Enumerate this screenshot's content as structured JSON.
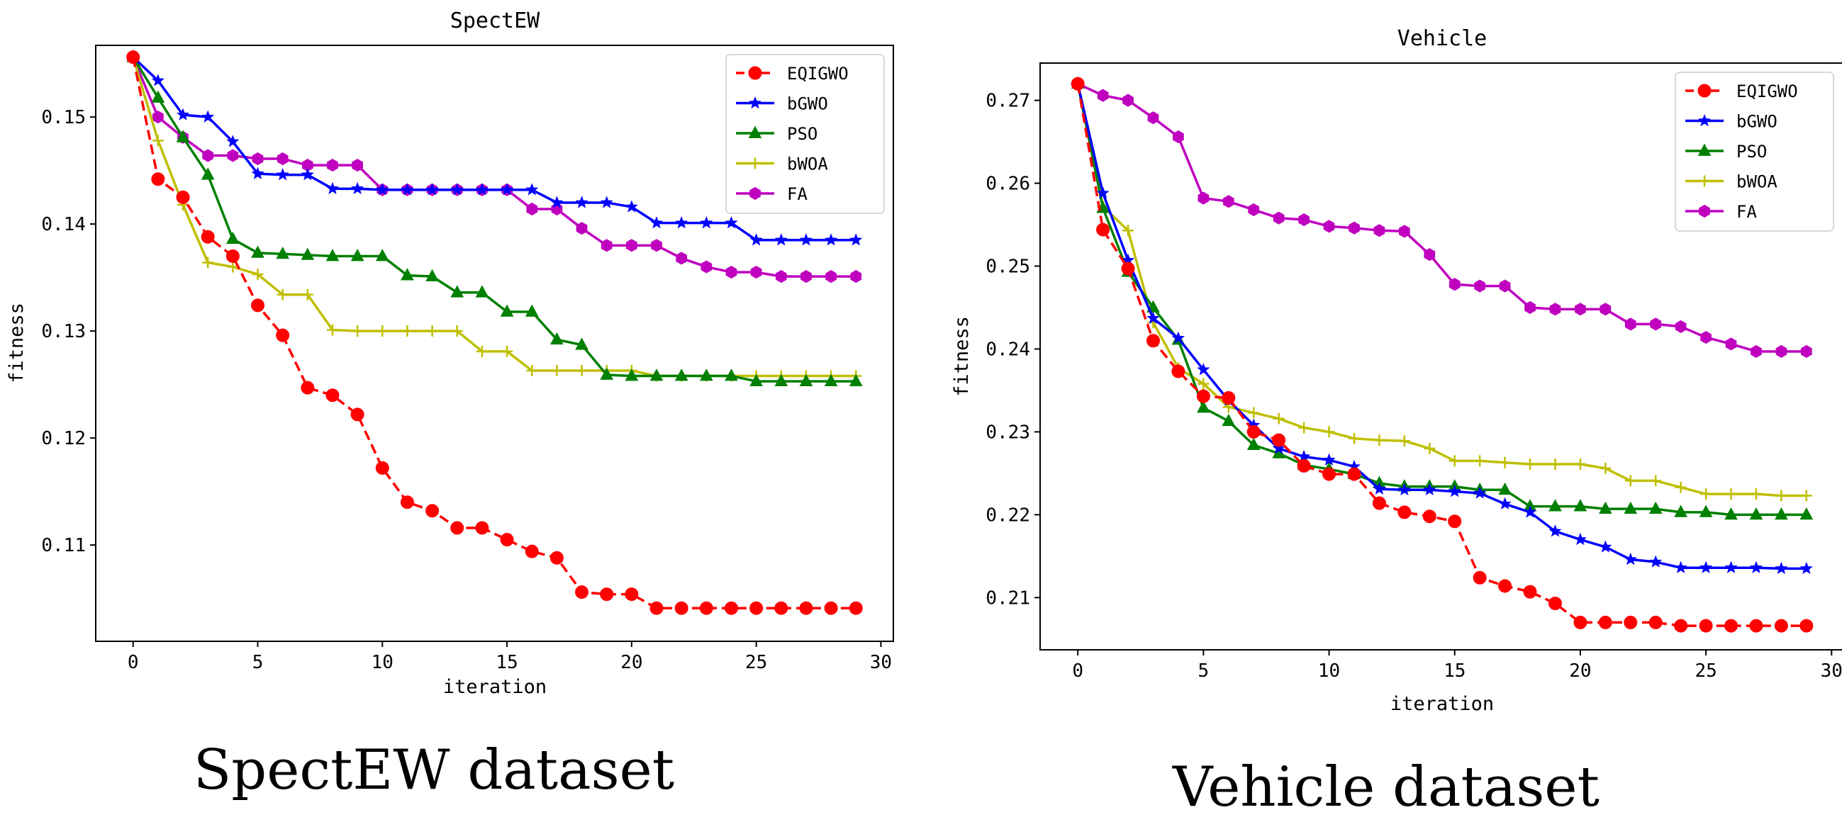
{
  "chart_data": [
    {
      "type": "line",
      "title": "SpectEW",
      "xlabel": "iteration",
      "ylabel": "fitness",
      "xlim": [
        -1.5,
        30.5
      ],
      "ylim": [
        0.101,
        0.1567
      ],
      "xticks": [
        0,
        5,
        10,
        15,
        20,
        25,
        30
      ],
      "xtick_labels": [
        "0",
        "5",
        "10",
        "15",
        "20",
        "25",
        "30"
      ],
      "yticks": [
        0.11,
        0.12,
        0.13,
        0.14,
        0.15
      ],
      "ytick_labels": [
        "0.11",
        "0.12",
        "0.13",
        "0.14",
        "0.15"
      ],
      "legend_position": "top-right",
      "caption": "SpectEW dataset",
      "x": [
        0,
        1,
        2,
        3,
        4,
        5,
        6,
        7,
        8,
        9,
        10,
        11,
        12,
        13,
        14,
        15,
        16,
        17,
        18,
        19,
        20,
        21,
        22,
        23,
        24,
        25,
        26,
        27,
        28,
        29
      ],
      "series": [
        {
          "name": "EQIGWO",
          "color": "#ff0000",
          "marker": "circle",
          "dashed": true,
          "values": [
            0.1556,
            0.1442,
            0.1425,
            0.1388,
            0.137,
            0.1324,
            0.1296,
            0.1247,
            0.124,
            0.1222,
            0.1172,
            0.114,
            0.1132,
            0.1116,
            0.1116,
            0.1105,
            0.1094,
            0.1088,
            0.1056,
            0.1054,
            0.1054,
            0.1041,
            0.1041,
            0.1041,
            0.1041,
            0.1041,
            0.1041,
            0.1041,
            0.1041,
            0.1041
          ]
        },
        {
          "name": "bGWO",
          "color": "#0000ff",
          "marker": "star",
          "dashed": false,
          "values": [
            0.1556,
            0.1534,
            0.1502,
            0.15,
            0.1477,
            0.1447,
            0.1446,
            0.1446,
            0.1433,
            0.1433,
            0.1432,
            0.1432,
            0.1432,
            0.1432,
            0.1432,
            0.1432,
            0.1432,
            0.142,
            0.142,
            0.142,
            0.1416,
            0.1401,
            0.1401,
            0.1401,
            0.1401,
            0.1385,
            0.1385,
            0.1385,
            0.1385,
            0.1385
          ]
        },
        {
          "name": "PSO",
          "color": "#008000",
          "marker": "triangle",
          "dashed": false,
          "values": [
            0.1556,
            0.1518,
            0.1481,
            0.1446,
            0.1386,
            0.1373,
            0.1372,
            0.1371,
            0.137,
            0.137,
            0.137,
            0.1352,
            0.1351,
            0.1336,
            0.1336,
            0.1318,
            0.1318,
            0.1292,
            0.1287,
            0.1259,
            0.1258,
            0.1258,
            0.1258,
            0.1258,
            0.1258,
            0.1253,
            0.1253,
            0.1253,
            0.1253,
            0.1253
          ]
        },
        {
          "name": "bWOA",
          "color": "#bfbf00",
          "marker": "plus",
          "dashed": false,
          "values": [
            0.1556,
            0.1478,
            0.1418,
            0.1364,
            0.136,
            0.1353,
            0.1334,
            0.1334,
            0.1301,
            0.13,
            0.13,
            0.13,
            0.13,
            0.13,
            0.1281,
            0.1281,
            0.1263,
            0.1263,
            0.1263,
            0.1263,
            0.1263,
            0.1258,
            0.1258,
            0.1258,
            0.1258,
            0.1258,
            0.1258,
            0.1258,
            0.1258,
            0.1258
          ]
        },
        {
          "name": "FA",
          "color": "#bf00bf",
          "marker": "hexagon",
          "dashed": false,
          "values": [
            0.1556,
            0.15,
            0.1481,
            0.1464,
            0.1464,
            0.1461,
            0.1461,
            0.1455,
            0.1455,
            0.1455,
            0.1432,
            0.1432,
            0.1432,
            0.1432,
            0.1432,
            0.1432,
            0.1414,
            0.1414,
            0.1396,
            0.138,
            0.138,
            0.138,
            0.1368,
            0.136,
            0.1355,
            0.1355,
            0.1351,
            0.1351,
            0.1351,
            0.1351
          ]
        }
      ]
    },
    {
      "type": "line",
      "title": "Vehicle",
      "xlabel": "iteration",
      "ylabel": "fitness",
      "xlim": [
        -1.5,
        30.5
      ],
      "ylim": [
        0.2037,
        0.2745
      ],
      "xticks": [
        0,
        5,
        10,
        15,
        20,
        25,
        30
      ],
      "xtick_labels": [
        "0",
        "5",
        "10",
        "15",
        "20",
        "25",
        "30"
      ],
      "yticks": [
        0.21,
        0.22,
        0.23,
        0.24,
        0.25,
        0.26,
        0.27
      ],
      "ytick_labels": [
        "0.21",
        "0.22",
        "0.23",
        "0.24",
        "0.25",
        "0.26",
        "0.27"
      ],
      "legend_position": "top-right",
      "caption": "Vehicle dataset",
      "x": [
        0,
        1,
        2,
        3,
        4,
        5,
        6,
        7,
        8,
        9,
        10,
        11,
        12,
        13,
        14,
        15,
        16,
        17,
        18,
        19,
        20,
        21,
        22,
        23,
        24,
        25,
        26,
        27,
        28,
        29
      ],
      "series": [
        {
          "name": "EQIGWO",
          "color": "#ff0000",
          "marker": "circle",
          "dashed": true,
          "values": [
            0.272,
            0.2544,
            0.2497,
            0.241,
            0.2373,
            0.2343,
            0.2341,
            0.23,
            0.229,
            0.2259,
            0.2249,
            0.2249,
            0.2214,
            0.2203,
            0.2198,
            0.2192,
            0.2124,
            0.2114,
            0.2107,
            0.2093,
            0.207,
            0.207,
            0.207,
            0.207,
            0.2066,
            0.2066,
            0.2066,
            0.2066,
            0.2066,
            0.2066
          ]
        },
        {
          "name": "bGWO",
          "color": "#0000ff",
          "marker": "star",
          "dashed": false,
          "values": [
            0.272,
            0.2588,
            0.2507,
            0.2437,
            0.2413,
            0.2375,
            0.2338,
            0.2308,
            0.228,
            0.227,
            0.2266,
            0.2258,
            0.2231,
            0.223,
            0.223,
            0.2228,
            0.2226,
            0.2213,
            0.2203,
            0.218,
            0.217,
            0.2161,
            0.2146,
            0.2143,
            0.2136,
            0.2136,
            0.2136,
            0.2136,
            0.2135,
            0.2135
          ]
        },
        {
          "name": "PSO",
          "color": "#008000",
          "marker": "triangle",
          "dashed": false,
          "values": [
            0.272,
            0.257,
            0.2493,
            0.245,
            0.2411,
            0.2329,
            0.2313,
            0.2284,
            0.2274,
            0.226,
            0.2255,
            0.2249,
            0.2238,
            0.2234,
            0.2234,
            0.2234,
            0.223,
            0.223,
            0.221,
            0.221,
            0.221,
            0.2207,
            0.2207,
            0.2207,
            0.2203,
            0.2203,
            0.22,
            0.22,
            0.22,
            0.22
          ]
        },
        {
          "name": "bWOA",
          "color": "#bfbf00",
          "marker": "plus",
          "dashed": false,
          "values": [
            0.272,
            0.2572,
            0.2543,
            0.2432,
            0.2377,
            0.2358,
            0.233,
            0.2323,
            0.2316,
            0.2305,
            0.23,
            0.2292,
            0.229,
            0.2289,
            0.228,
            0.2265,
            0.2265,
            0.2263,
            0.2261,
            0.2261,
            0.2261,
            0.2256,
            0.2241,
            0.2241,
            0.2233,
            0.2225,
            0.2225,
            0.2225,
            0.2223,
            0.2223
          ]
        },
        {
          "name": "FA",
          "color": "#bf00bf",
          "marker": "hexagon",
          "dashed": false,
          "values": [
            0.272,
            0.2706,
            0.27,
            0.2679,
            0.2656,
            0.2582,
            0.2578,
            0.2568,
            0.2558,
            0.2556,
            0.2548,
            0.2546,
            0.2543,
            0.2542,
            0.2514,
            0.2478,
            0.2476,
            0.2476,
            0.245,
            0.2448,
            0.2448,
            0.2448,
            0.243,
            0.243,
            0.2427,
            0.2414,
            0.2406,
            0.2397,
            0.2397,
            0.2397
          ]
        }
      ]
    }
  ]
}
